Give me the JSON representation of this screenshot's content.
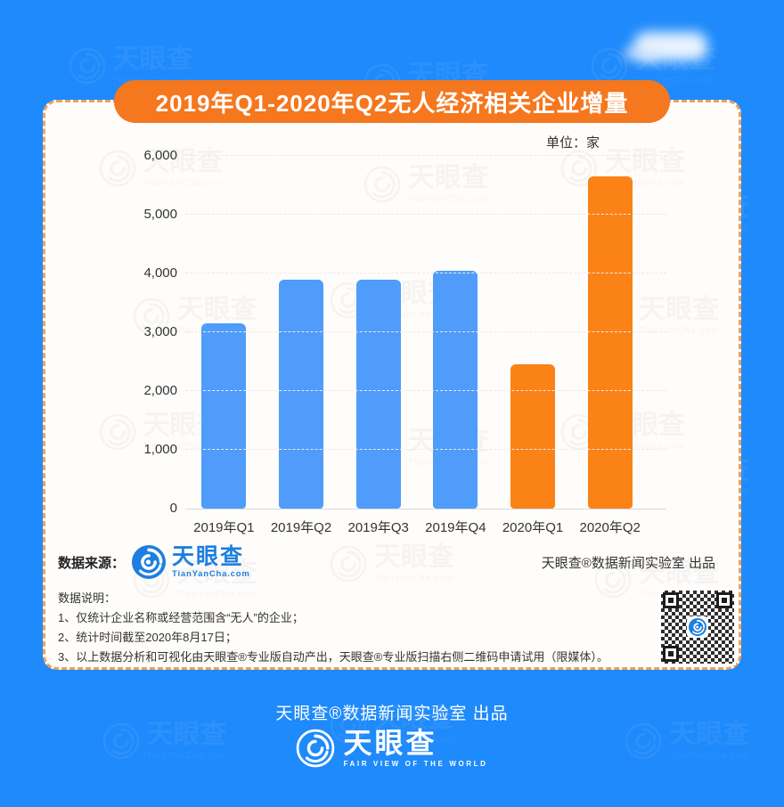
{
  "banner": {
    "title": "2019年Q1-2020年Q2无人经济相关企业增量"
  },
  "chart_data": {
    "type": "bar",
    "title": "2019年Q1-2020年Q2无人经济相关企业增量",
    "unit_label": "单位：家",
    "categories": [
      "2019年Q1",
      "2019年Q2",
      "2019年Q3",
      "2019年Q4",
      "2020年Q1",
      "2020年Q2"
    ],
    "values": [
      3150,
      3900,
      3900,
      4050,
      2450,
      5650
    ],
    "bar_colors": [
      "#4f9cfa",
      "#4f9cfa",
      "#4f9cfa",
      "#4f9cfa",
      "#fb8217",
      "#fb8217"
    ],
    "xlabel": "",
    "ylabel": "",
    "ylim": [
      0,
      6000
    ],
    "yticks": [
      {
        "value": 0,
        "label": "0"
      },
      {
        "value": 1000,
        "label": "1,000"
      },
      {
        "value": 2000,
        "label": "2,000"
      },
      {
        "value": 3000,
        "label": "3,000"
      },
      {
        "value": 4000,
        "label": "4,000"
      },
      {
        "value": 5000,
        "label": "5,000"
      },
      {
        "value": 6000,
        "label": "6,000"
      }
    ],
    "grid": "horizontal-dashed",
    "legend": "none"
  },
  "source": {
    "label": "数据来源：",
    "logo_name": "天眼查",
    "logo_url": "TianYanCha.com",
    "credit": "天眼查®数据新闻实验室 出品"
  },
  "notes": {
    "title": "数据说明：",
    "lines": [
      "1、仅统计企业名称或经营范围含“无人”的企业；",
      "2、统计时间截至2020年8月17日；",
      "3、以上数据分析和可视化由天眼查®专业版自动产出，天眼查®专业版扫描右侧二维码申请试用（限媒体）。"
    ]
  },
  "footer": {
    "credit": "天眼查®数据新闻实验室 出品",
    "logo_name": "天眼查",
    "tagline": "FAIR VIEW OF THE WORLD"
  },
  "watermark": {
    "line1": "天眼查",
    "line2": "TianYanCha.com"
  },
  "colors": {
    "background": "#1e8afb",
    "banner": "#f5771e",
    "bar_blue": "#4f9cfa",
    "bar_orange": "#fb8217",
    "logo_blue": "#1d7fdf"
  }
}
